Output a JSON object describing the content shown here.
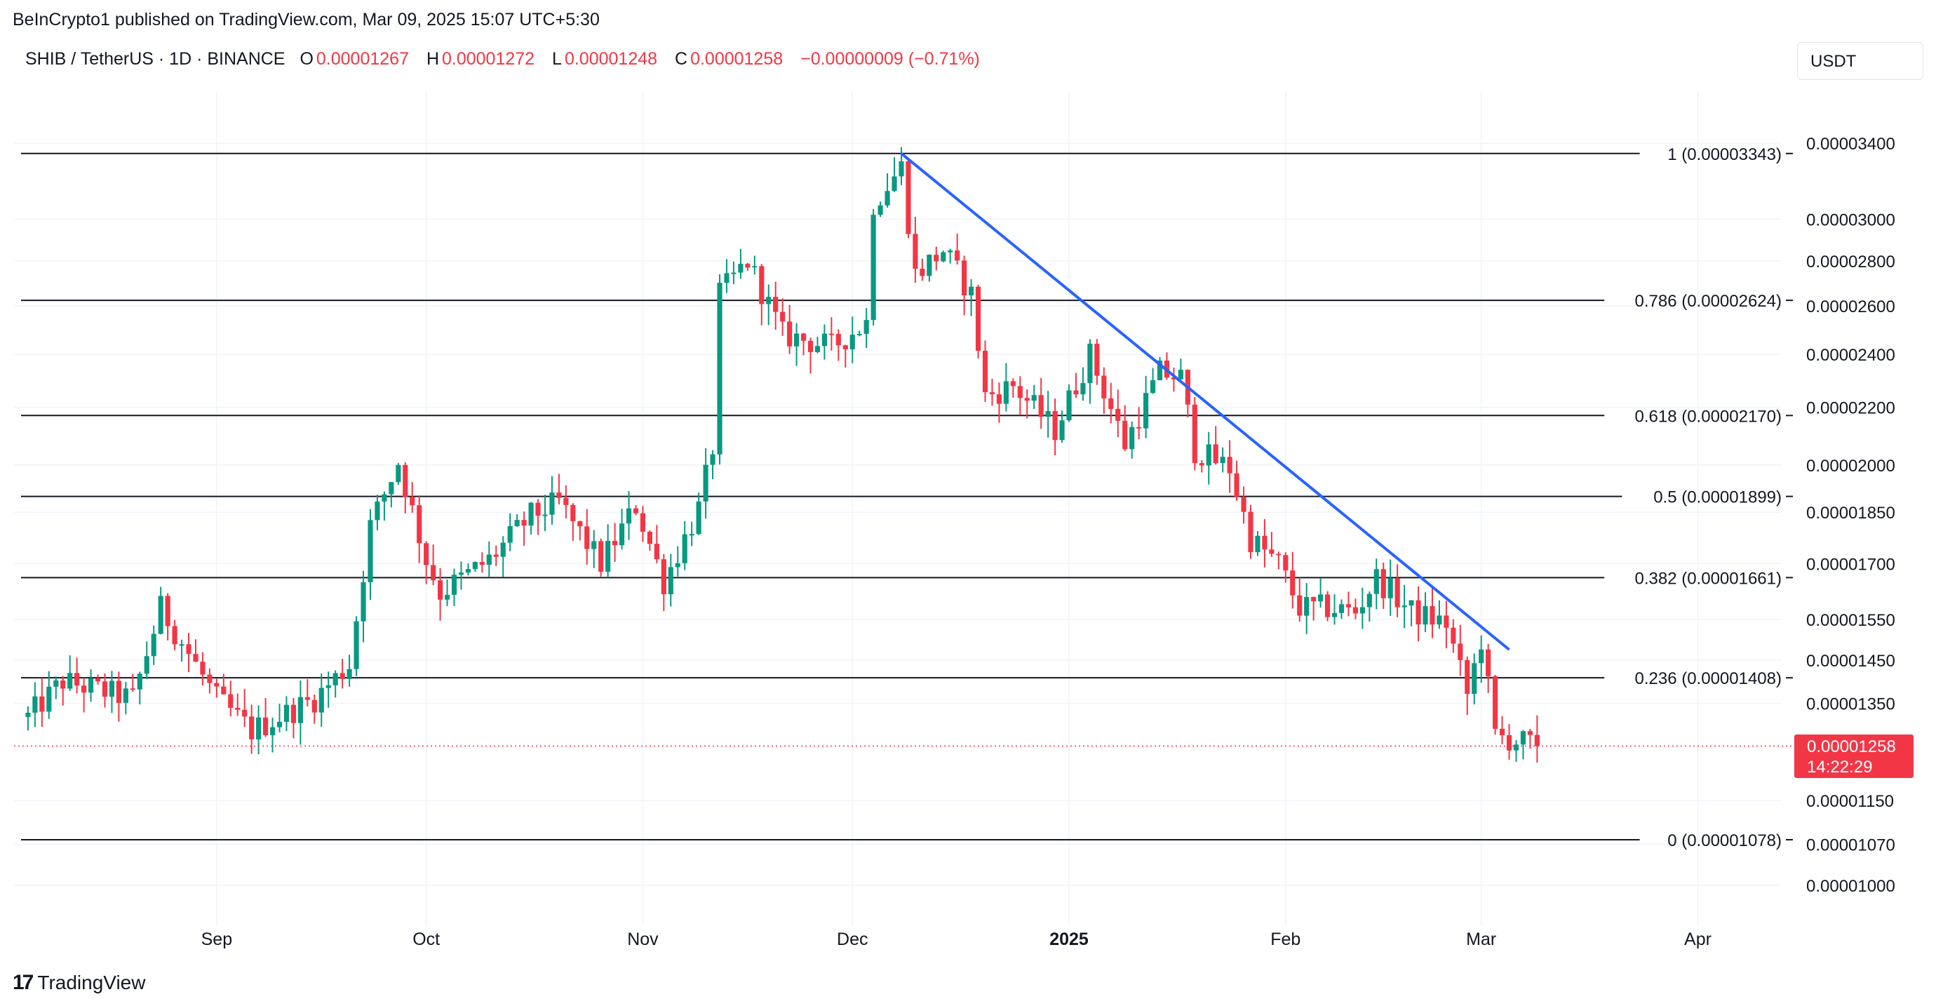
{
  "header": {
    "published": "BeInCrypto1 published on TradingView.com, Mar 09, 2025 15:07 UTC+5:30"
  },
  "symbol_bar": {
    "symbol": "SHIB / TetherUS · 1D · BINANCE",
    "o_label": "O",
    "o_value": "0.00001267",
    "h_label": "H",
    "h_value": "0.00001272",
    "l_label": "L",
    "l_value": "0.00001248",
    "c_label": "C",
    "c_value": "0.00001258",
    "change": "−0.00000009 (−0.71%)"
  },
  "currency_button": "USDT",
  "last_price": {
    "value": "0.00001258",
    "countdown": "14:22:29"
  },
  "branding": {
    "logo_text": "TradingView"
  },
  "colors": {
    "up": "#089981",
    "down": "#f23645",
    "trendline": "#2962ff",
    "fib": "#131722",
    "grid": "#f0f3fa"
  },
  "chart_data": {
    "type": "candlestick",
    "scale": "log",
    "y_ticks": [
      "0.00003400",
      "0.00003000",
      "0.00002800",
      "0.00002600",
      "0.00002400",
      "0.00002200",
      "0.00002000",
      "0.00001850",
      "0.00001700",
      "0.00001550",
      "0.00001450",
      "0.00001350",
      "0.00001150",
      "0.00001070",
      "0.00001000"
    ],
    "x_ticks": [
      {
        "label": "Sep",
        "date": "2024-09-01",
        "bold": false
      },
      {
        "label": "Oct",
        "date": "2024-10-01",
        "bold": false
      },
      {
        "label": "Nov",
        "date": "2024-11-01",
        "bold": false
      },
      {
        "label": "Dec",
        "date": "2024-12-01",
        "bold": false
      },
      {
        "label": "2025",
        "date": "2025-01-01",
        "bold": true
      },
      {
        "label": "Feb",
        "date": "2025-02-01",
        "bold": false
      },
      {
        "label": "Mar",
        "date": "2025-03-01",
        "bold": false
      },
      {
        "label": "Apr",
        "date": "2025-04-01",
        "bold": false
      }
    ],
    "fib_levels": [
      {
        "label": "1 (0.00003343)",
        "value": 3.343e-05
      },
      {
        "label": "0.786 (0.00002624)",
        "value": 2.624e-05
      },
      {
        "label": "0.618 (0.00002170)",
        "value": 2.17e-05
      },
      {
        "label": "0.5 (0.00001899)",
        "value": 1.899e-05
      },
      {
        "label": "0.382 (0.00001661)",
        "value": 1.661e-05
      },
      {
        "label": "0.236 (0.00001408)",
        "value": 1.408e-05
      },
      {
        "label": "0 (0.00001078)",
        "value": 1.078e-05
      }
    ],
    "trendline": [
      [
        "2024-12-08",
        3.343e-05
      ],
      [
        "2025-03-05",
        1.475e-05
      ]
    ],
    "last_value": 1.258e-05,
    "keypoints": [
      [
        "2024-08-05",
        1.32e-05
      ],
      [
        "2024-08-10",
        1.4e-05
      ],
      [
        "2024-08-20",
        1.36e-05
      ],
      [
        "2024-08-24",
        1.58e-05
      ],
      [
        "2024-09-01",
        1.36e-05
      ],
      [
        "2024-09-06",
        1.29e-05
      ],
      [
        "2024-09-15",
        1.36e-05
      ],
      [
        "2024-09-20",
        1.44e-05
      ],
      [
        "2024-09-23",
        1.81e-05
      ],
      [
        "2024-09-27",
        2.01e-05
      ],
      [
        "2024-10-01",
        1.71e-05
      ],
      [
        "2024-10-03",
        1.62e-05
      ],
      [
        "2024-10-10",
        1.71e-05
      ],
      [
        "2024-10-16",
        1.84e-05
      ],
      [
        "2024-10-20",
        1.88e-05
      ],
      [
        "2024-10-26",
        1.7e-05
      ],
      [
        "2024-10-31",
        1.87e-05
      ],
      [
        "2024-11-04",
        1.65e-05
      ],
      [
        "2024-11-09",
        1.86e-05
      ],
      [
        "2024-11-11",
        2.06e-05
      ],
      [
        "2024-11-12",
        2.65e-05
      ],
      [
        "2024-11-16",
        2.8e-05
      ],
      [
        "2024-11-21",
        2.48e-05
      ],
      [
        "2024-11-28",
        2.43e-05
      ],
      [
        "2024-12-03",
        2.53e-05
      ],
      [
        "2024-12-04",
        3.08e-05
      ],
      [
        "2024-12-08",
        3.27e-05
      ],
      [
        "2024-12-10",
        2.74e-05
      ],
      [
        "2024-12-14",
        2.85e-05
      ],
      [
        "2024-12-18",
        2.65e-05
      ],
      [
        "2024-12-20",
        2.24e-05
      ],
      [
        "2024-12-24",
        2.28e-05
      ],
      [
        "2024-12-30",
        2.12e-05
      ],
      [
        "2025-01-04",
        2.4e-05
      ],
      [
        "2025-01-09",
        2.07e-05
      ],
      [
        "2025-01-14",
        2.33e-05
      ],
      [
        "2025-01-17",
        2.31e-05
      ],
      [
        "2025-01-19",
        2.05e-05
      ],
      [
        "2025-01-24",
        1.99e-05
      ],
      [
        "2025-01-27",
        1.77e-05
      ],
      [
        "2025-01-31",
        1.7e-05
      ],
      [
        "2025-02-03",
        1.58e-05
      ],
      [
        "2025-02-07",
        1.58e-05
      ],
      [
        "2025-02-11",
        1.57e-05
      ],
      [
        "2025-02-14",
        1.66e-05
      ],
      [
        "2025-02-19",
        1.57e-05
      ],
      [
        "2025-02-24",
        1.54e-05
      ],
      [
        "2025-02-27",
        1.37e-05
      ],
      [
        "2025-03-01",
        1.5e-05
      ],
      [
        "2025-03-03",
        1.28e-05
      ],
      [
        "2025-03-09",
        1.258e-05
      ]
    ]
  }
}
